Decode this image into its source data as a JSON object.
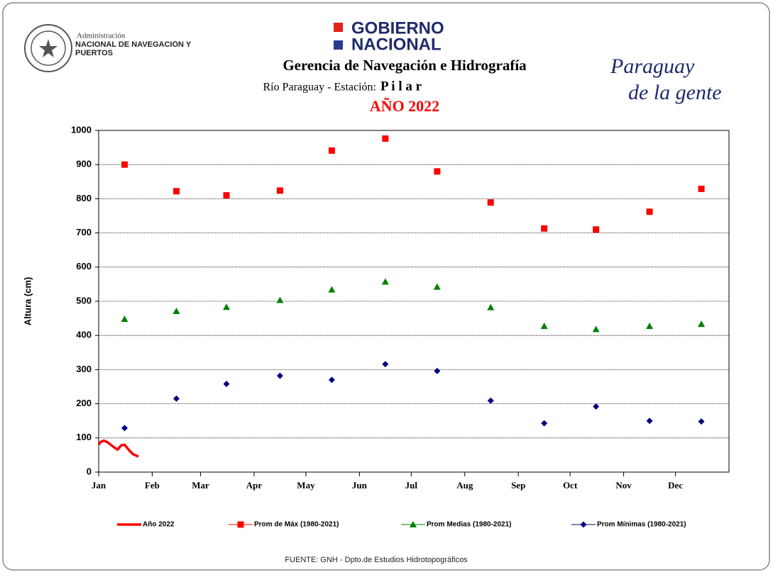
{
  "header": {
    "agency_small": "Administración",
    "agency_big": "NACIONAL DE NAVEGACIÓN Y PUERTOS",
    "gov_line1": "GOBIERNO",
    "gov_line2": "NACIONAL",
    "brand_line1": "Paraguay",
    "brand_line2": "de la gente",
    "footer": "FUENTE:  GNH  - Dpto.de Estudios Hidrotopográficos"
  },
  "chart_data": {
    "type": "scatter",
    "title": "Gerencia de Navegación e Hidrografía",
    "subtitle_prefix": "Río Paraguay  -  Estación:",
    "subtitle_station": "P i l a r",
    "year_title": "AÑO  2022",
    "y_label": "Altura (cm)",
    "xlim": [
      1,
      366
    ],
    "ylim": [
      0,
      1000
    ],
    "xticks": [
      {
        "value": 1,
        "label": "Jan"
      },
      {
        "value": 32,
        "label": "Feb"
      },
      {
        "value": 60,
        "label": "Mar"
      },
      {
        "value": 91,
        "label": "Apr"
      },
      {
        "value": 121,
        "label": "May"
      },
      {
        "value": 152,
        "label": "Jun"
      },
      {
        "value": 182,
        "label": "Jul"
      },
      {
        "value": 213,
        "label": "Aug"
      },
      {
        "value": 244,
        "label": "Sep"
      },
      {
        "value": 274,
        "label": "Oct"
      },
      {
        "value": 305,
        "label": "Nov"
      },
      {
        "value": 335,
        "label": "Dec"
      }
    ],
    "yticks": [
      0,
      100,
      200,
      300,
      400,
      500,
      600,
      700,
      800,
      900,
      1000
    ],
    "grid": true,
    "series": [
      {
        "name": "Año 2022",
        "color": "#ff0000",
        "marker": "line",
        "x": [
          1,
          2,
          4,
          6,
          8,
          10,
          12,
          13,
          14,
          16,
          17,
          19,
          21,
          23,
          24
        ],
        "values": [
          80,
          88,
          92,
          88,
          80,
          72,
          66,
          72,
          78,
          80,
          74,
          62,
          52,
          48,
          45
        ]
      },
      {
        "name": "Prom de Máx (1980-2021)",
        "color": "#ff0000",
        "marker": "square",
        "x": [
          16,
          46,
          75,
          106,
          136,
          167,
          197,
          228,
          259,
          289,
          320,
          350
        ],
        "values": [
          900,
          822,
          810,
          824,
          941,
          976,
          880,
          789,
          713,
          710,
          762,
          829
        ]
      },
      {
        "name": "Prom Medias (1980-2021)",
        "color": "#008000",
        "marker": "triangle",
        "x": [
          16,
          46,
          75,
          106,
          136,
          167,
          197,
          228,
          259,
          289,
          320,
          350
        ],
        "values": [
          448,
          471,
          483,
          503,
          534,
          557,
          542,
          482,
          427,
          418,
          427,
          433
        ]
      },
      {
        "name": "Prom Mínimas (1980-2021)",
        "color": "#000080",
        "marker": "diamond",
        "x": [
          16,
          46,
          75,
          106,
          136,
          167,
          197,
          228,
          259,
          289,
          320,
          350
        ],
        "values": [
          129,
          215,
          258,
          282,
          270,
          316,
          296,
          209,
          143,
          192,
          150,
          148
        ]
      }
    ]
  }
}
